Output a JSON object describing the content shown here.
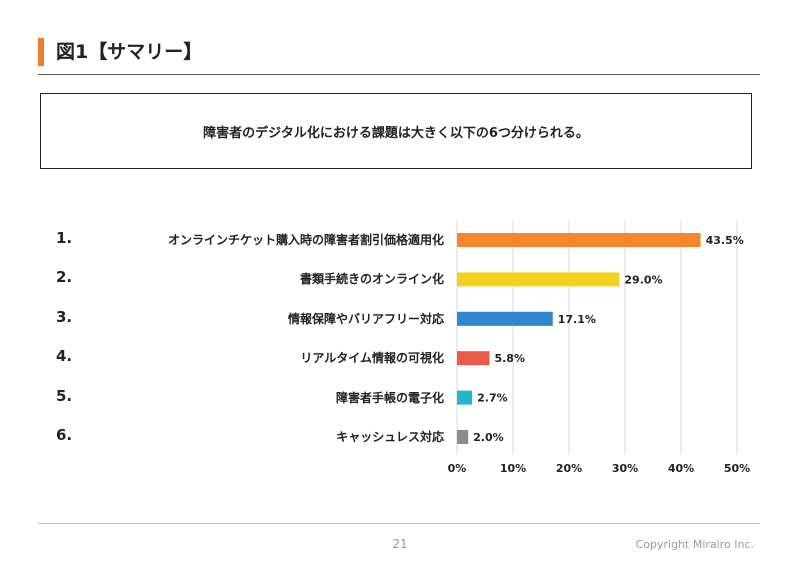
{
  "header": {
    "title": "図1【サマリー】",
    "accent_color": "#f07c2a"
  },
  "summary": {
    "text": "障害者のデジタル化における課題は大きく以下の6つ分けられる。"
  },
  "chart_data": {
    "type": "bar",
    "orientation": "horizontal",
    "numbers": [
      "1.",
      "2.",
      "3.",
      "4.",
      "5.",
      "6."
    ],
    "categories": [
      "オンラインチケット購入時の障害者割引価格適用化",
      "書類手続きのオンライン化",
      "情報保障やバリアフリー対応",
      "リアルタイム情報の可視化",
      "障害者手帳の電子化",
      "キャッシュレス対応"
    ],
    "values": [
      43.5,
      29.0,
      17.1,
      5.8,
      2.7,
      2.0
    ],
    "value_labels": [
      "43.5%",
      "29.0%",
      "17.1%",
      "5.8%",
      "2.7%",
      "2.0%"
    ],
    "colors": [
      "#f5862f",
      "#f2d21f",
      "#2e86d0",
      "#ea5b45",
      "#21b5cf",
      "#8c8c8c"
    ],
    "xlim": [
      0,
      50
    ],
    "x_ticks": [
      0,
      10,
      20,
      30,
      40,
      50
    ],
    "x_tick_labels": [
      "0%",
      "10%",
      "20%",
      "30%",
      "40%",
      "50%"
    ],
    "grid": "vertical"
  },
  "footer": {
    "page_number": "21",
    "copyright": "Copyright Mirairo Inc."
  }
}
